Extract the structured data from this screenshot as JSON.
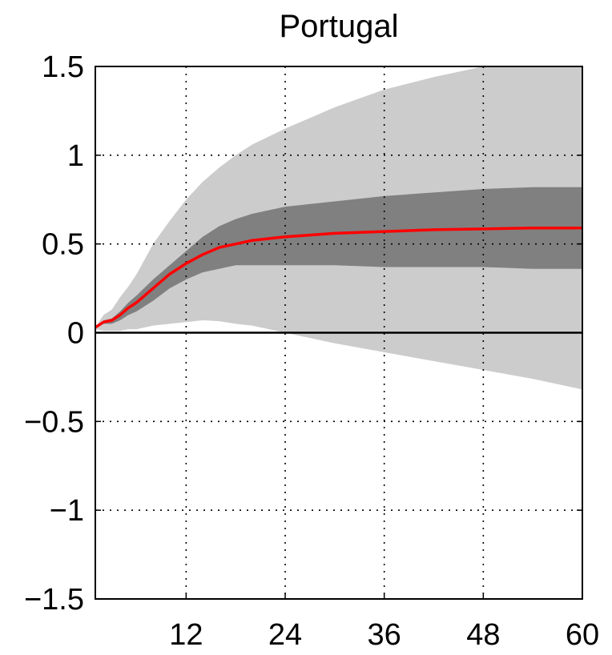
{
  "chart_data": {
    "type": "area",
    "title": "Portugal",
    "xlabel": "",
    "ylabel": "",
    "xlim": [
      1,
      60
    ],
    "ylim": [
      -1.5,
      1.5
    ],
    "xticks": [
      12,
      24,
      36,
      48,
      60
    ],
    "yticks": [
      1.5,
      1,
      0.5,
      0,
      -0.5,
      -1,
      -1.5
    ],
    "xtick_labels": [
      "12",
      "24",
      "36",
      "48",
      "60"
    ],
    "ytick_labels": [
      "1.5",
      "1",
      "0.5",
      "0",
      "−0.5",
      "−1",
      "−1.5"
    ],
    "grid": true,
    "zero_line": true,
    "colors": {
      "outer_band": "#cccccc",
      "inner_band": "#808080",
      "median_line": "#ff0000"
    },
    "x": [
      1,
      2,
      3,
      4,
      5,
      6,
      8,
      10,
      12,
      14,
      16,
      18,
      20,
      24,
      30,
      36,
      42,
      48,
      54,
      60
    ],
    "series": [
      {
        "role": "outer_upper",
        "values": [
          0.03,
          0.1,
          0.13,
          0.2,
          0.26,
          0.33,
          0.5,
          0.63,
          0.75,
          0.85,
          0.93,
          1.0,
          1.06,
          1.15,
          1.27,
          1.37,
          1.44,
          1.5,
          1.52,
          1.52
        ]
      },
      {
        "role": "outer_lower",
        "values": [
          0.02,
          0.01,
          0.01,
          0.01,
          0.02,
          0.02,
          0.04,
          0.05,
          0.06,
          0.07,
          0.065,
          0.05,
          0.04,
          0.0,
          -0.06,
          -0.11,
          -0.16,
          -0.21,
          -0.26,
          -0.32
        ]
      },
      {
        "role": "inner_upper",
        "values": [
          0.03,
          0.07,
          0.08,
          0.12,
          0.17,
          0.21,
          0.3,
          0.38,
          0.46,
          0.54,
          0.6,
          0.64,
          0.67,
          0.71,
          0.74,
          0.77,
          0.79,
          0.81,
          0.82,
          0.82
        ]
      },
      {
        "role": "inner_lower",
        "values": [
          0.03,
          0.05,
          0.05,
          0.07,
          0.1,
          0.12,
          0.18,
          0.25,
          0.3,
          0.34,
          0.36,
          0.38,
          0.38,
          0.38,
          0.38,
          0.37,
          0.37,
          0.37,
          0.36,
          0.36
        ]
      },
      {
        "role": "median",
        "values": [
          0.03,
          0.06,
          0.07,
          0.1,
          0.14,
          0.17,
          0.25,
          0.33,
          0.39,
          0.44,
          0.48,
          0.5,
          0.52,
          0.54,
          0.56,
          0.57,
          0.58,
          0.585,
          0.59,
          0.59
        ]
      }
    ]
  }
}
